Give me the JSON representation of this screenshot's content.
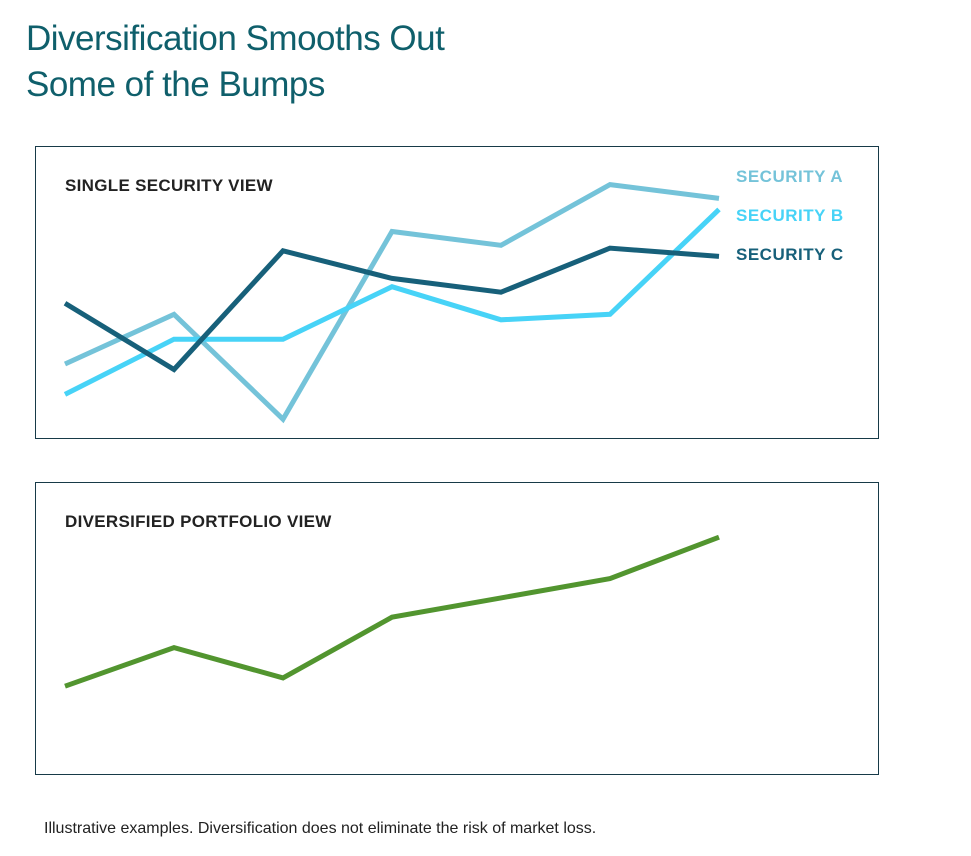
{
  "title_lines": [
    "Diversification Smooths Out",
    "Some of the Bumps"
  ],
  "footnote": "Illustrative examples. Diversification does not eliminate the risk of market loss.",
  "colors": {
    "security_a": "#74c3d9",
    "security_b": "#47d3f7",
    "security_c": "#17607a",
    "portfolio": "#52952f",
    "frame": "#173a48",
    "title": "#0f5f6b"
  },
  "chart_data": [
    {
      "type": "line",
      "title": "SINGLE SECURITY VIEW",
      "x": [
        1,
        2,
        3,
        4,
        5,
        6,
        7
      ],
      "ylim": [
        0,
        100
      ],
      "grid": false,
      "legend": "right",
      "series": [
        {
          "name": "SECURITY A",
          "values": [
            25,
            43,
            5,
            73,
            68,
            90,
            85
          ]
        },
        {
          "name": "SECURITY B",
          "values": [
            14,
            34,
            34,
            53,
            41,
            43,
            81
          ]
        },
        {
          "name": "SECURITY C",
          "values": [
            47,
            23,
            66,
            56,
            51,
            67,
            64
          ]
        }
      ]
    },
    {
      "type": "line",
      "title": "DIVERSIFIED PORTFOLIO VIEW",
      "x": [
        1,
        2,
        3,
        4,
        5,
        6,
        7
      ],
      "ylim": [
        0,
        100
      ],
      "grid": false,
      "legend": "none",
      "series": [
        {
          "values": [
            30,
            44,
            33,
            55,
            62,
            69,
            84
          ]
        }
      ]
    }
  ]
}
